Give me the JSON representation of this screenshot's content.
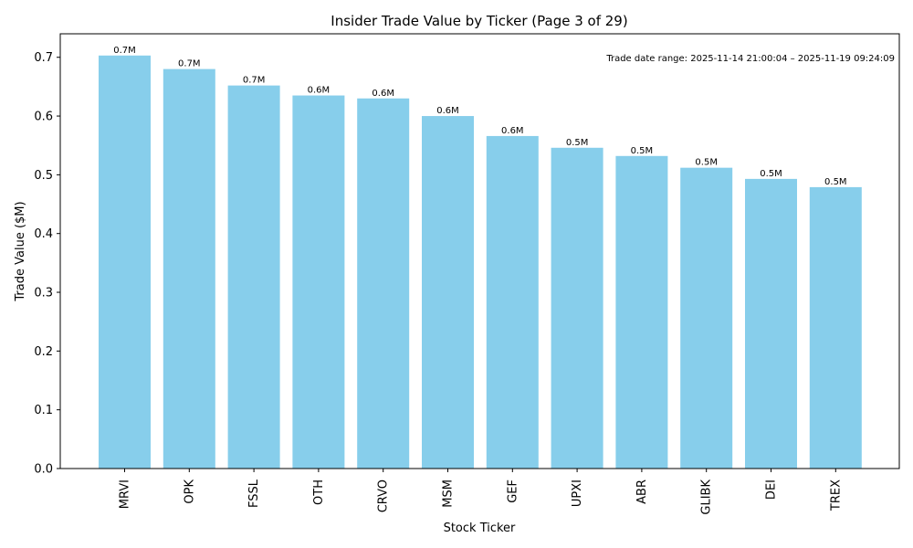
{
  "chart_data": {
    "type": "bar",
    "title": "Insider Trade Value by Ticker (Page 3 of 29)",
    "xlabel": "Stock Ticker",
    "ylabel": "Trade Value ($M)",
    "categories": [
      "MRVI",
      "OPK",
      "FSSL",
      "OTH",
      "CRVO",
      "MSM",
      "GEF",
      "UPXI",
      "ABR",
      "GLIBK",
      "DEI",
      "TREX"
    ],
    "values": [
      0.703,
      0.68,
      0.652,
      0.635,
      0.63,
      0.6,
      0.566,
      0.546,
      0.532,
      0.512,
      0.493,
      0.479
    ],
    "data_labels": [
      "0.7M",
      "0.7M",
      "0.7M",
      "0.6M",
      "0.6M",
      "0.6M",
      "0.6M",
      "0.5M",
      "0.5M",
      "0.5M",
      "0.5M",
      "0.5M"
    ],
    "ylim": [
      0,
      0.74
    ],
    "yticks": [
      0.0,
      0.1,
      0.2,
      0.3,
      0.4,
      0.5,
      0.6,
      0.7
    ],
    "ytick_labels": [
      "0.0",
      "0.1",
      "0.2",
      "0.3",
      "0.4",
      "0.5",
      "0.6",
      "0.7"
    ],
    "bar_color": "#87CEEB",
    "grid": false,
    "annotation": "Trade date range: 2025-11-14 21:00:04 – 2025-11-19 09:24:09"
  }
}
